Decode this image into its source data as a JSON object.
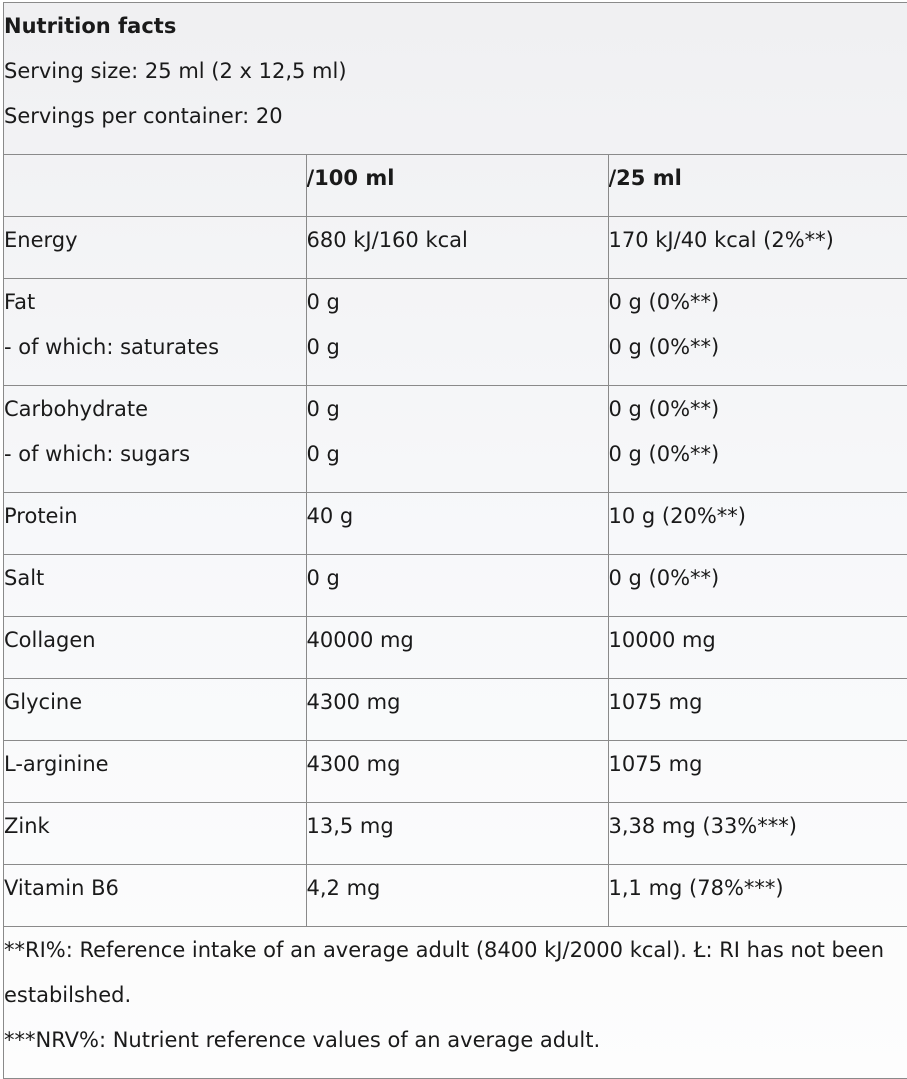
{
  "title": "Nutrition facts",
  "serving_size": "Serving size: 25 ml (2 x 12,5 ml)",
  "servings_per_container": "Servings per container: 20",
  "columns": [
    "",
    "/100 ml",
    "/25 ml"
  ],
  "rows": [
    {
      "name": [
        "Energy"
      ],
      "per100": [
        "680 kJ/160 kcal"
      ],
      "per25": [
        "170 kJ/40 kcal (2%**)"
      ]
    },
    {
      "name": [
        "Fat",
        "- of which: saturates"
      ],
      "per100": [
        "0 g",
        "0 g"
      ],
      "per25": [
        "0 g (0%**)",
        "0 g (0%**)"
      ]
    },
    {
      "name": [
        "Carbohydrate",
        "- of which: sugars"
      ],
      "per100": [
        "0 g",
        "0 g"
      ],
      "per25": [
        "0 g (0%**)",
        "0 g (0%**)"
      ]
    },
    {
      "name": [
        "Protein"
      ],
      "per100": [
        "40 g"
      ],
      "per25": [
        "10 g (20%**)"
      ]
    },
    {
      "name": [
        "Salt"
      ],
      "per100": [
        "0 g"
      ],
      "per25": [
        "0 g (0%**)"
      ]
    },
    {
      "name": [
        "Collagen"
      ],
      "per100": [
        "40000 mg"
      ],
      "per25": [
        "10000 mg"
      ]
    },
    {
      "name": [
        "Glycine"
      ],
      "per100": [
        "4300 mg"
      ],
      "per25": [
        "1075 mg"
      ]
    },
    {
      "name": [
        "L-arginine"
      ],
      "per100": [
        "4300 mg"
      ],
      "per25": [
        "1075 mg"
      ]
    },
    {
      "name": [
        "Zink"
      ],
      "per100": [
        "13,5 mg"
      ],
      "per25": [
        "3,38 mg (33%***)"
      ]
    },
    {
      "name": [
        "Vitamin B6"
      ],
      "per100": [
        "4,2 mg"
      ],
      "per25": [
        "1,1 mg (78%***)"
      ]
    }
  ],
  "footnotes": [
    "**RI%: Reference intake of an average adult (8400 kJ/2000 kcal). Ł: RI has not been estabilshed.",
    "***NRV%: Nutrient reference values of an average adult."
  ]
}
